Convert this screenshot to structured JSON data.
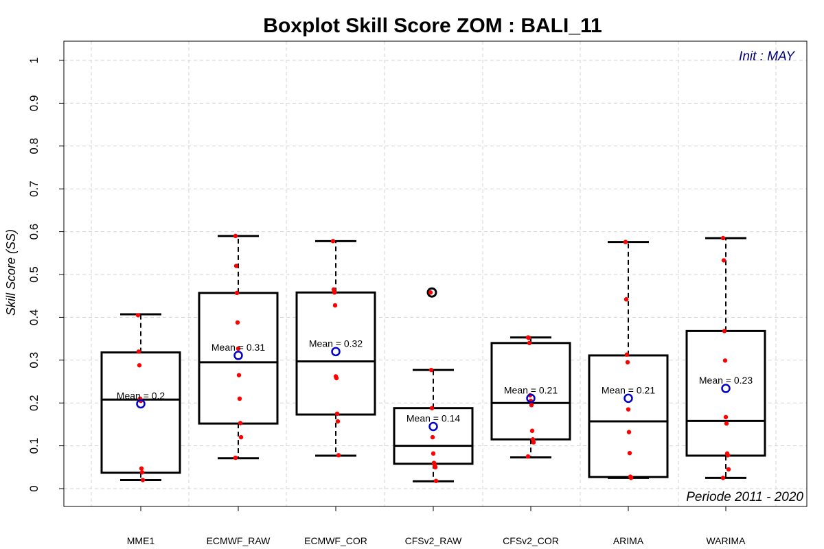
{
  "chart_data": {
    "type": "boxplot",
    "title": "Boxplot Skill Score ZOM : BALI_11",
    "ylabel": "Skill Score (SS)",
    "xlabel": "",
    "ylim": [
      0,
      1
    ],
    "yticks": [
      0,
      0.1,
      0.2,
      0.3,
      0.4,
      0.5,
      0.6,
      0.7,
      0.8,
      0.9,
      1
    ],
    "ytick_labels": [
      "0",
      "0.1",
      "0.2",
      "0.3",
      "0.4",
      "0.5",
      "0.6",
      "0.7",
      "0.8",
      "0.9",
      "1"
    ],
    "grid": true,
    "annotations": {
      "init": "Init : MAY",
      "period": "Periode 2011 - 2020"
    },
    "colors": {
      "box": "#000000",
      "points": "#ff0000",
      "mean_marker": "#0000cc",
      "grid": "#d3d3d3",
      "init_text": "#00007a"
    },
    "categories": [
      "MME1",
      "ECMWF_RAW",
      "ECMWF_COR",
      "CFSv2_RAW",
      "CFSv2_COR",
      "ARIMA",
      "WARIMA"
    ],
    "boxes": [
      {
        "name": "MME1",
        "min": 0.02,
        "q1": 0.037,
        "median": 0.208,
        "q3": 0.318,
        "max": 0.407,
        "mean": 0.198,
        "mean_label": "Mean = 0.2",
        "outliers": [],
        "points": [
          0.405,
          0.32,
          0.288,
          0.21,
          0.205,
          0.047,
          0.038,
          0.02
        ]
      },
      {
        "name": "ECMWF_RAW",
        "min": 0.071,
        "q1": 0.152,
        "median": 0.295,
        "q3": 0.457,
        "max": 0.59,
        "mean": 0.311,
        "mean_label": "Mean = 0.31",
        "outliers": [],
        "points": [
          0.59,
          0.52,
          0.457,
          0.388,
          0.327,
          0.265,
          0.21,
          0.153,
          0.12,
          0.072
        ]
      },
      {
        "name": "ECMWF_COR",
        "min": 0.077,
        "q1": 0.173,
        "median": 0.297,
        "q3": 0.458,
        "max": 0.578,
        "mean": 0.32,
        "mean_label": "Mean = 0.32",
        "outliers": [],
        "points": [
          0.578,
          0.465,
          0.458,
          0.428,
          0.262,
          0.258,
          0.175,
          0.157,
          0.078
        ]
      },
      {
        "name": "CFSv2_RAW",
        "min": 0.017,
        "q1": 0.058,
        "median": 0.1,
        "q3": 0.188,
        "max": 0.277,
        "mean": 0.145,
        "mean_label": "Mean = 0.14",
        "outliers": [
          0.458
        ],
        "points": [
          0.458,
          0.277,
          0.188,
          0.12,
          0.082,
          0.06,
          0.055,
          0.05,
          0.018
        ]
      },
      {
        "name": "CFSv2_COR",
        "min": 0.073,
        "q1": 0.115,
        "median": 0.2,
        "q3": 0.34,
        "max": 0.353,
        "mean": 0.211,
        "mean_label": "Mean = 0.21",
        "outliers": [],
        "points": [
          0.353,
          0.352,
          0.34,
          0.218,
          0.205,
          0.195,
          0.135,
          0.115,
          0.108,
          0.075
        ]
      },
      {
        "name": "ARIMA",
        "min": 0.025,
        "q1": 0.027,
        "median": 0.157,
        "q3": 0.311,
        "max": 0.576,
        "mean": 0.211,
        "mean_label": "Mean = 0.21",
        "outliers": [],
        "points": [
          0.576,
          0.442,
          0.313,
          0.295,
          0.185,
          0.132,
          0.083,
          0.028,
          0.025
        ]
      },
      {
        "name": "WARIMA",
        "min": 0.025,
        "q1": 0.077,
        "median": 0.158,
        "q3": 0.368,
        "max": 0.585,
        "mean": 0.234,
        "mean_label": "Mean = 0.23",
        "outliers": [],
        "points": [
          0.585,
          0.533,
          0.368,
          0.299,
          0.167,
          0.152,
          0.082,
          0.078,
          0.045,
          0.025
        ]
      }
    ]
  }
}
